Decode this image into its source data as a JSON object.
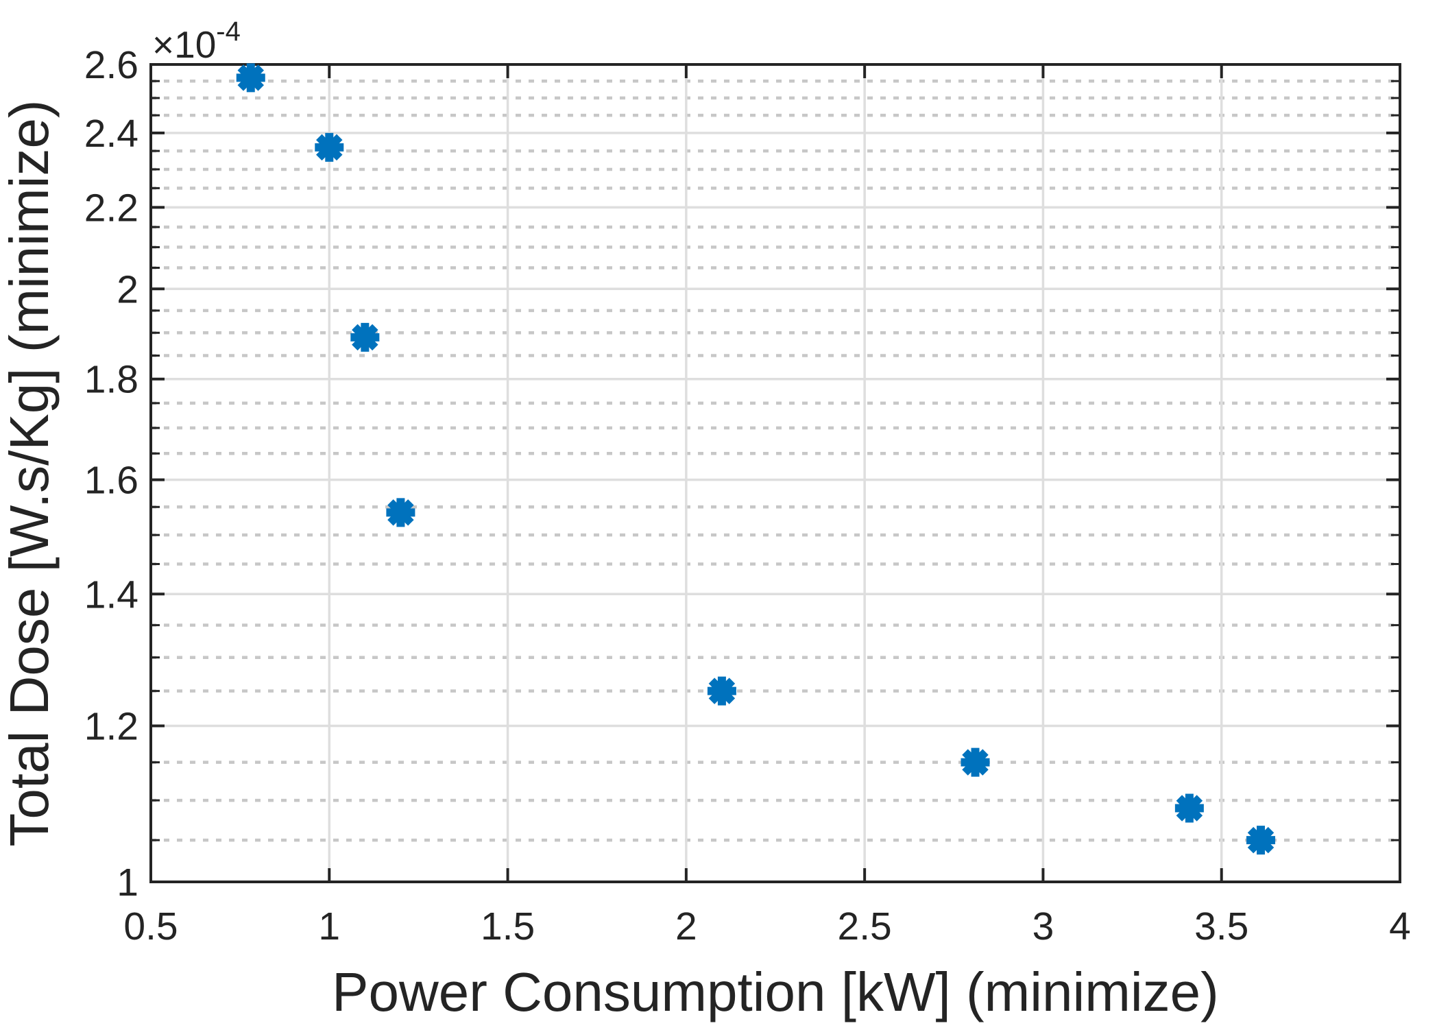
{
  "figure": {
    "background": "#ffffff"
  },
  "chart_data": {
    "type": "scatter",
    "title": "",
    "xlabel": "Power Consumption [kW] (minimize)",
    "ylabel": "Total Dose [W.s/Kg] (minimize)",
    "y_exponent_label": "×10",
    "y_exponent_power": "-4",
    "xscale": "linear",
    "yscale": "log",
    "xlim": [
      0.5,
      4
    ],
    "ylim_e4": [
      1.0,
      2.6
    ],
    "y_unit_scale": 0.0001,
    "x_ticks": [
      0.5,
      1,
      1.5,
      2,
      2.5,
      3,
      3.5,
      4
    ],
    "x_tick_labels": [
      "0.5",
      "1",
      "1.5",
      "2",
      "2.5",
      "3",
      "3.5",
      "4"
    ],
    "y_ticks_e4": [
      1,
      1.2,
      1.4,
      1.6,
      1.8,
      2,
      2.2,
      2.4,
      2.6
    ],
    "y_tick_labels": [
      "1",
      "1.2",
      "1.4",
      "1.6",
      "1.8",
      "2",
      "2.2",
      "2.4",
      "2.6"
    ],
    "y_minor_step_e4": 0.05,
    "grid": true,
    "y_minor_grid": true,
    "x_minor_grid": false,
    "legend": null,
    "points": [
      {
        "x": 0.78,
        "y_e4": 2.56
      },
      {
        "x": 1.0,
        "y_e4": 2.36
      },
      {
        "x": 1.1,
        "y_e4": 1.89
      },
      {
        "x": 1.2,
        "y_e4": 1.54
      },
      {
        "x": 2.1,
        "y_e4": 1.25
      },
      {
        "x": 2.81,
        "y_e4": 1.15
      },
      {
        "x": 3.41,
        "y_e4": 1.09
      },
      {
        "x": 3.61,
        "y_e4": 1.05
      }
    ],
    "marker": {
      "shape": "asterisk",
      "color": "#0072BD",
      "radius": 21,
      "stroke_width": 12
    },
    "colors": {
      "axis": "#242424",
      "text": "#242424",
      "major_grid": "#dedede",
      "minor_grid": "#c7c7c7",
      "marker": "#0072BD",
      "background": "#ffffff"
    }
  }
}
